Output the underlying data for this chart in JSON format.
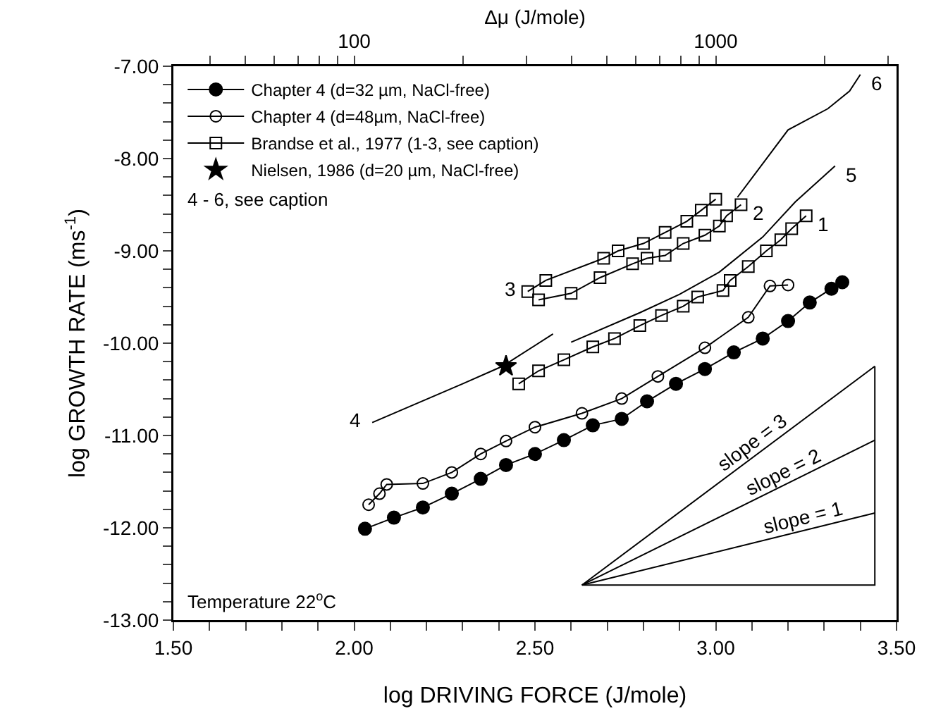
{
  "chart_data": {
    "type": "line",
    "xlabel": "log DRIVING FORCE (J/mole)",
    "ylabel": "log GROWTH RATE (ms$^{-1}$)",
    "x2label": "Δμ (J/mole)",
    "xlim": [
      1.5,
      3.5
    ],
    "xticks": [
      {
        "value": 1.5,
        "label": "1.50"
      },
      {
        "value": 1.6,
        "label": null
      },
      {
        "value": 1.7,
        "label": null
      },
      {
        "value": 1.8,
        "label": null
      },
      {
        "value": 1.9,
        "label": null
      },
      {
        "value": 2.0,
        "label": "2.00"
      },
      {
        "value": 2.1,
        "label": null
      },
      {
        "value": 2.2,
        "label": null
      },
      {
        "value": 2.3,
        "label": null
      },
      {
        "value": 2.4,
        "label": null
      },
      {
        "value": 2.5,
        "label": "2.50"
      },
      {
        "value": 2.6,
        "label": null
      },
      {
        "value": 2.7,
        "label": null
      },
      {
        "value": 2.8,
        "label": null
      },
      {
        "value": 2.9,
        "label": null
      },
      {
        "value": 3.0,
        "label": "3.00"
      },
      {
        "value": 3.1,
        "label": null
      },
      {
        "value": 3.2,
        "label": null
      },
      {
        "value": 3.3,
        "label": null
      },
      {
        "value": 3.4,
        "label": null
      },
      {
        "value": 3.5,
        "label": "3.50"
      }
    ],
    "x2lim": [
      31.62,
      3162
    ],
    "x2ticks": [
      {
        "value": 40,
        "label": null
      },
      {
        "value": 50,
        "label": null
      },
      {
        "value": 60,
        "label": null
      },
      {
        "value": 70,
        "label": null
      },
      {
        "value": 80,
        "label": null
      },
      {
        "value": 90,
        "label": null
      },
      100,
      {
        "value": 200,
        "label": null
      },
      {
        "value": 300,
        "label": null
      },
      {
        "value": 400,
        "label": null
      },
      {
        "value": 500,
        "label": null
      },
      {
        "value": 600,
        "label": null
      },
      {
        "value": 700,
        "label": null
      },
      {
        "value": 800,
        "label": null
      },
      {
        "value": 900,
        "label": null
      },
      1000,
      {
        "value": 2000,
        "label": null
      },
      {
        "value": 3000,
        "label": null
      }
    ],
    "ylim": [
      -13,
      -7
    ],
    "yticks": [
      {
        "value": -13,
        "label": "-13.00"
      },
      {
        "value": -12.8,
        "label": null
      },
      {
        "value": -12.6,
        "label": null
      },
      {
        "value": -12.4,
        "label": null
      },
      {
        "value": -12.2,
        "label": null
      },
      {
        "value": -12,
        "label": "-12.00"
      },
      {
        "value": -11.8,
        "label": null
      },
      {
        "value": -11.6,
        "label": null
      },
      {
        "value": -11.4,
        "label": null
      },
      {
        "value": -11.2,
        "label": null
      },
      {
        "value": -11,
        "label": "-11.00"
      },
      {
        "value": -10.8,
        "label": null
      },
      {
        "value": -10.6,
        "label": null
      },
      {
        "value": -10.4,
        "label": null
      },
      {
        "value": -10.2,
        "label": null
      },
      {
        "value": -10,
        "label": "-10.00"
      },
      {
        "value": -9.8,
        "label": null
      },
      {
        "value": -9.6,
        "label": null
      },
      {
        "value": -9.4,
        "label": null
      },
      {
        "value": -9.2,
        "label": null
      },
      {
        "value": -9,
        "label": "-9.00"
      },
      {
        "value": -8.8,
        "label": null
      },
      {
        "value": -8.6,
        "label": null
      },
      {
        "value": -8.4,
        "label": null
      },
      {
        "value": -8.2,
        "label": null
      },
      {
        "value": -8,
        "label": "-8.00"
      },
      {
        "value": -7.8,
        "label": null
      },
      {
        "value": -7.6,
        "label": null
      },
      {
        "value": -7.4,
        "label": null
      },
      {
        "value": -7.2,
        "label": null
      },
      {
        "value": -7,
        "label": "-7.00"
      }
    ],
    "grid": false,
    "legend": "top left",
    "log": "x2",
    "series": [
      {
        "name": "Chapter 4 (d=32 µm, NaCl-free)",
        "color": "#000000",
        "marker": "circle",
        "x": [
          2.03,
          2.11,
          2.19,
          2.27,
          2.35,
          2.42,
          2.5,
          2.58,
          2.66,
          2.74,
          2.81,
          2.89,
          2.97,
          3.05,
          3.13,
          3.2,
          3.26,
          3.32,
          3.35
        ],
        "values": [
          -12.01,
          -11.89,
          -11.78,
          -11.63,
          -11.47,
          -11.32,
          -11.2,
          -11.05,
          -10.89,
          -10.82,
          -10.63,
          -10.44,
          -10.28,
          -10.1,
          -9.95,
          -9.76,
          -9.56,
          -9.41,
          -9.34
        ]
      },
      {
        "name": "Chapter 4 (d=48µm, NaCl-free)",
        "color": "#000000",
        "marker": "circle-open",
        "x": [
          2.04,
          2.07,
          2.09,
          2.19,
          2.27,
          2.35,
          2.42,
          2.5,
          2.63,
          2.74,
          2.84,
          2.97,
          3.09,
          3.15,
          3.2
        ],
        "values": [
          -11.75,
          -11.63,
          -11.53,
          -11.52,
          -11.4,
          -11.2,
          -11.06,
          -10.91,
          -10.76,
          -10.6,
          -10.36,
          -10.05,
          -9.72,
          -9.38,
          -9.37
        ]
      },
      {
        "name": "Brandse et al., 1977 (1-3, see caption)",
        "color": "#000000",
        "marker": "square-open",
        "x": [
          2.455,
          2.51,
          2.58,
          2.66,
          2.72,
          2.79,
          2.85,
          2.91,
          2.95,
          3.02,
          3.04,
          3.09,
          3.14,
          3.18,
          3.21,
          3.25
        ],
        "values": [
          -10.44,
          -10.3,
          -10.18,
          -10.04,
          -9.95,
          -9.81,
          -9.7,
          -9.6,
          -9.5,
          -9.43,
          -9.32,
          -9.17,
          -9.0,
          -8.88,
          -8.76,
          -8.62
        ]
      },
      {
        "color": "#000000",
        "marker": "square-open",
        "x": [
          2.51,
          2.6,
          2.68,
          2.77,
          2.81,
          2.86,
          2.91,
          2.97,
          3.01,
          3.03,
          3.07
        ],
        "values": [
          -9.53,
          -9.46,
          -9.29,
          -9.14,
          -9.08,
          -9.05,
          -8.92,
          -8.83,
          -8.73,
          -8.62,
          -8.5
        ]
      },
      {
        "color": "#000000",
        "marker": "square-open",
        "x": [
          2.48,
          2.53,
          2.69,
          2.73,
          2.8,
          2.86,
          2.92,
          2.96,
          3.0
        ],
        "values": [
          -9.44,
          -9.32,
          -9.08,
          -9.0,
          -8.92,
          -8.8,
          -8.68,
          -8.56,
          -8.44
        ]
      },
      {
        "name": "Nielsen, 1986 (d=20 µm, NaCl-free)",
        "type": "scatter",
        "color": "#000000",
        "marker": "star",
        "x": [
          2.42
        ],
        "values": [
          -10.25
        ]
      },
      {
        "color": "#000000",
        "x": [
          2.05,
          2.3,
          2.41,
          2.55
        ],
        "values": [
          -10.86,
          -10.44,
          -10.25,
          -9.9
        ]
      },
      {
        "color": "#000000",
        "x": [
          2.6,
          2.79,
          2.9,
          3.01,
          3.13,
          3.22,
          3.33
        ],
        "values": [
          -9.99,
          -9.67,
          -9.47,
          -9.23,
          -8.85,
          -8.47,
          -8.08
        ]
      },
      {
        "color": "#000000",
        "x": [
          3.06,
          3.2,
          3.31,
          3.37,
          3.4
        ],
        "values": [
          -8.42,
          -7.69,
          -7.46,
          -7.27,
          -7.09
        ]
      },
      {
        "color": "#000000",
        "x": [
          2.63,
          3.44
        ],
        "values": [
          -12.62,
          -10.25
        ]
      },
      {
        "color": "#000000",
        "x": [
          2.63,
          3.44
        ],
        "values": [
          -12.62,
          -11.05
        ]
      },
      {
        "color": "#000000",
        "x": [
          2.63,
          3.44
        ],
        "values": [
          -12.62,
          -11.84
        ]
      },
      {
        "color": "#000000",
        "x": [
          2.63,
          3.44,
          3.44
        ],
        "values": [
          -12.62,
          -12.62,
          -10.25
        ]
      }
    ],
    "annotations": [
      "4 - 6, see caption",
      "Temperature 22$^{o}$C",
      {
        "text": "1",
        "x": 3.25,
        "y": -8.62
      },
      {
        "text": "2",
        "x": 3.07,
        "y": -8.5
      },
      {
        "text": "3",
        "x": 2.48,
        "y": -9.44
      },
      {
        "text": "4",
        "x": 2.05,
        "y": -10.86
      },
      {
        "text": "5",
        "x": 3.33,
        "y": -8.08
      },
      {
        "text": "6",
        "x": 3.4,
        "y": -7.09
      },
      {
        "text": "slope = 3",
        "x": 3.12,
        "y": -11.19
      },
      {
        "text": "slope = 2",
        "x": 3.2,
        "y": -11.52
      },
      {
        "text": "slope = 1",
        "x": 3.25,
        "y": -12.02
      }
    ]
  }
}
